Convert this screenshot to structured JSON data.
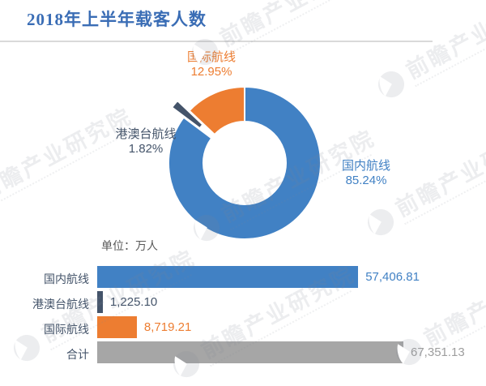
{
  "page": {
    "title": "2018年上半年载客人数",
    "title_color": "#3A6DB5",
    "unit_label": "单位：万人"
  },
  "watermark": {
    "text": "前瞻产业研究院"
  },
  "chart_data": [
    {
      "type": "pie",
      "subtype": "donut",
      "title": "2018年上半年载客人数",
      "categories": [
        "国内航线",
        "港澳台航线",
        "国际航线"
      ],
      "values": [
        85.24,
        1.82,
        12.95
      ],
      "value_unit": "percent",
      "colors": [
        "#4181C4",
        "#44546A",
        "#ED7D31"
      ],
      "exploded_index": 1,
      "start_angle_deg": 0,
      "callouts": [
        {
          "label": "国内航线",
          "pct": "85.24%",
          "color": "#4181C4"
        },
        {
          "label": "港澳台航线",
          "pct": "1.82%",
          "color": "#44546A"
        },
        {
          "label": "国际航线",
          "pct": "12.95%",
          "color": "#ED7D31"
        }
      ]
    },
    {
      "type": "bar",
      "orientation": "horizontal",
      "unit": "万人",
      "categories": [
        "国内航线",
        "港澳台航线",
        "国际航线",
        "合计"
      ],
      "values": [
        57406.81,
        1225.1,
        8719.21,
        67351.13
      ],
      "value_labels": [
        "57,406.81",
        "1,225.10",
        "8,719.21",
        "67,351.13"
      ],
      "colors": [
        "#4181C4",
        "#44546A",
        "#ED7D31",
        "#A6A6A6"
      ],
      "value_colors": [
        "#4181C4",
        "#44546A",
        "#ED7D31",
        "#9E9E9E"
      ],
      "label_color": "#44546A"
    }
  ]
}
